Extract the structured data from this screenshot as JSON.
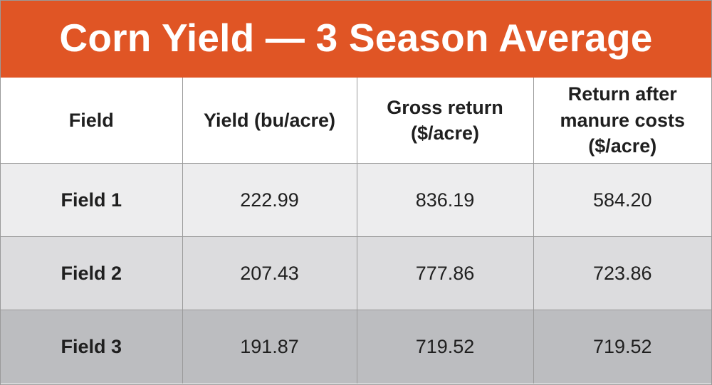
{
  "chart_data": {
    "type": "table",
    "title": "Corn Yield — 3 Season Average",
    "columns": [
      "Field",
      "Yield (bu/acre)",
      "Gross return\n($/acre)",
      "Return after\nmanure costs\n($/acre)"
    ],
    "rows": [
      {
        "field": "Field 1",
        "yield": "222.99",
        "gross": "836.19",
        "net": "584.20"
      },
      {
        "field": "Field 2",
        "yield": "207.43",
        "gross": "777.86",
        "net": "723.86"
      },
      {
        "field": "Field 3",
        "yield": "191.87",
        "gross": "719.52",
        "net": "719.52"
      }
    ]
  },
  "colors": {
    "title_background": "#e05525",
    "title_text": "#ffffff",
    "row_1_background": "#ededee",
    "row_2_background": "#dcdcde",
    "row_3_background": "#bcbdc0",
    "border": "#9a9a9a"
  }
}
